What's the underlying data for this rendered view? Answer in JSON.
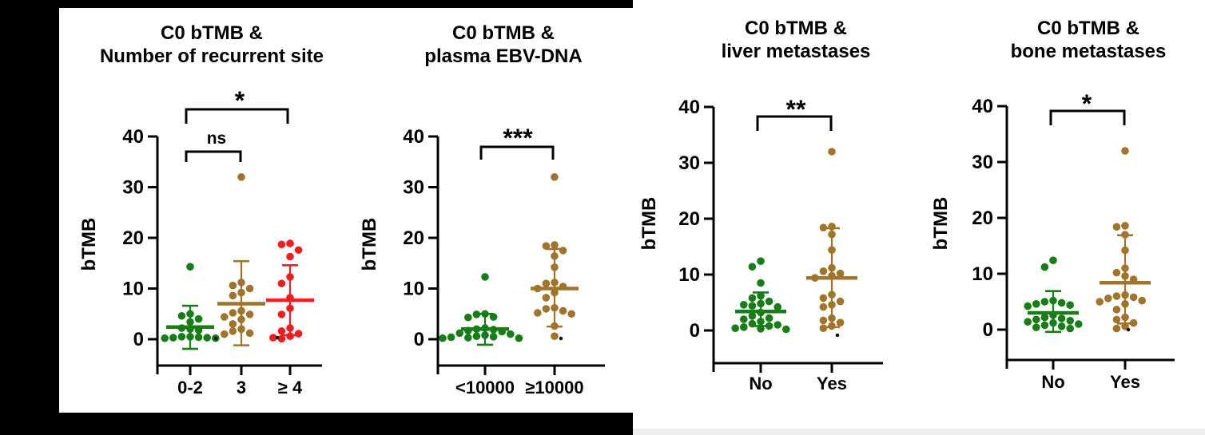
{
  "figure": {
    "background": "#000000",
    "panel_color": "#ffffff",
    "bottom_strip_color": "#eceeef",
    "colors": {
      "green": "#177d17",
      "brown": "#a0742a",
      "red": "#f01e1e",
      "axis": "#000000"
    }
  },
  "chart_data": [
    {
      "type": "scatter",
      "title_lines": [
        "C0 bTMB &",
        "Number of recurrent site"
      ],
      "ylabel": "bTMB",
      "yticks": [
        0,
        10,
        20,
        30,
        40
      ],
      "ylim": [
        0,
        40
      ],
      "grid": false,
      "groups": [
        {
          "label": "0-2",
          "color": "green",
          "mean": 2.4,
          "err_lo": -1.9,
          "err_hi": 6.6,
          "values": [
            14.3,
            5.0,
            4.6,
            4.0,
            3.4,
            2.2,
            2.0,
            1.8,
            0.5,
            0.5,
            0.4,
            0.3,
            0.3,
            0.2,
            0.2
          ]
        },
        {
          "label": "3",
          "color": "brown",
          "mean": 7.0,
          "err_lo": -1.2,
          "err_hi": 15.4,
          "values": [
            32.0,
            11.2,
            10.6,
            10.0,
            9.2,
            8.6,
            5.6,
            5.2,
            4.9,
            4.4,
            3.9,
            3.0,
            2.0,
            1.6,
            1.2,
            1.0
          ]
        },
        {
          "label": "≥ 4",
          "color": "red",
          "mean": 7.7,
          "err_lo": 0.8,
          "err_hi": 14.6,
          "values": [
            18.9,
            18.7,
            17.6,
            16.3,
            12.3,
            11.0,
            8.2,
            6.1,
            4.9,
            2.2,
            1.6,
            1.1,
            0.6,
            0.3,
            0.1
          ]
        }
      ],
      "significance": [
        {
          "between": [
            "0-2",
            "≥ 4"
          ],
          "label": "*"
        },
        {
          "between": [
            "0-2",
            "3"
          ],
          "label": "ns"
        }
      ]
    },
    {
      "type": "scatter",
      "title_lines": [
        "C0 bTMB &",
        "plasma EBV-DNA"
      ],
      "ylabel": "bTMB",
      "yticks": [
        0,
        10,
        20,
        30,
        40
      ],
      "ylim": [
        0,
        40
      ],
      "grid": false,
      "groups": [
        {
          "label": "<10000",
          "color": "green",
          "mean": 2.0,
          "err_lo": -1.1,
          "err_hi": 5.0,
          "values": [
            12.3,
            5.0,
            4.9,
            4.4,
            4.3,
            2.2,
            2.0,
            1.9,
            1.7,
            1.5,
            1.2,
            1.0,
            0.8,
            0.6,
            0.5,
            0.4,
            0.3,
            0.2,
            0.2
          ]
        },
        {
          "label": "≥10000",
          "color": "brown",
          "mean": 10.0,
          "err_lo": 2.5,
          "err_hi": 17.8,
          "values": [
            32.0,
            18.6,
            18.4,
            17.5,
            16.4,
            14.2,
            11.2,
            11.0,
            10.4,
            10.0,
            9.2,
            8.2,
            6.2,
            6.0,
            5.6,
            5.2,
            5.0,
            2.6,
            0.6
          ]
        }
      ],
      "significance": [
        {
          "between": [
            "<10000",
            "≥10000"
          ],
          "label": "***"
        }
      ]
    },
    {
      "type": "scatter",
      "title_lines": [
        "C0 bTMB &",
        "liver metastases"
      ],
      "ylabel": "bTMB",
      "yticks": [
        0,
        10,
        20,
        30,
        40
      ],
      "ylim": [
        0,
        40
      ],
      "grid": false,
      "groups": [
        {
          "label": "No",
          "color": "green",
          "mean": 3.4,
          "err_lo": 0.8,
          "err_hi": 6.8,
          "values": [
            12.4,
            11.4,
            8.5,
            6.2,
            5.8,
            5.2,
            4.8,
            4.6,
            4.4,
            4.2,
            3.2,
            2.6,
            2.2,
            2.0,
            1.6,
            1.2,
            1.0,
            0.8,
            0.6,
            0.4,
            0.3,
            0.2
          ]
        },
        {
          "label": "Yes",
          "color": "brown",
          "mean": 9.4,
          "err_lo": 0.6,
          "err_hi": 18.3,
          "values": [
            32.0,
            18.6,
            18.4,
            17.2,
            14.4,
            11.2,
            10.6,
            10.2,
            9.8,
            9.4,
            6.4,
            5.8,
            5.2,
            4.6,
            4.2,
            2.2,
            1.8,
            1.4,
            0.8,
            0.4
          ]
        }
      ],
      "significance": [
        {
          "between": [
            "No",
            "Yes"
          ],
          "label": "**"
        }
      ]
    },
    {
      "type": "scatter",
      "title_lines": [
        "C0 bTMB &",
        "bone metastases"
      ],
      "ylabel": "bTMB",
      "yticks": [
        0,
        10,
        20,
        30,
        40
      ],
      "ylim": [
        0,
        40
      ],
      "grid": false,
      "groups": [
        {
          "label": "No",
          "color": "green",
          "mean": 3.0,
          "err_lo": -0.4,
          "err_hi": 6.9,
          "values": [
            12.4,
            11.2,
            5.2,
            5.0,
            4.8,
            4.6,
            4.4,
            4.2,
            2.6,
            2.2,
            2.0,
            1.8,
            1.6,
            1.4,
            1.2,
            1.0,
            0.8,
            0.6,
            0.4,
            0.2
          ]
        },
        {
          "label": "Yes",
          "color": "brown",
          "mean": 8.4,
          "err_lo": 1.1,
          "err_hi": 16.9,
          "values": [
            32.0,
            18.6,
            18.4,
            17.0,
            14.2,
            11.0,
            10.2,
            9.6,
            9.0,
            6.2,
            6.0,
            5.8,
            5.6,
            5.2,
            5.0,
            4.6,
            3.6,
            2.2,
            1.8,
            1.2,
            0.6,
            0.2
          ]
        }
      ],
      "significance": [
        {
          "between": [
            "No",
            "Yes"
          ],
          "label": "*"
        }
      ]
    }
  ]
}
